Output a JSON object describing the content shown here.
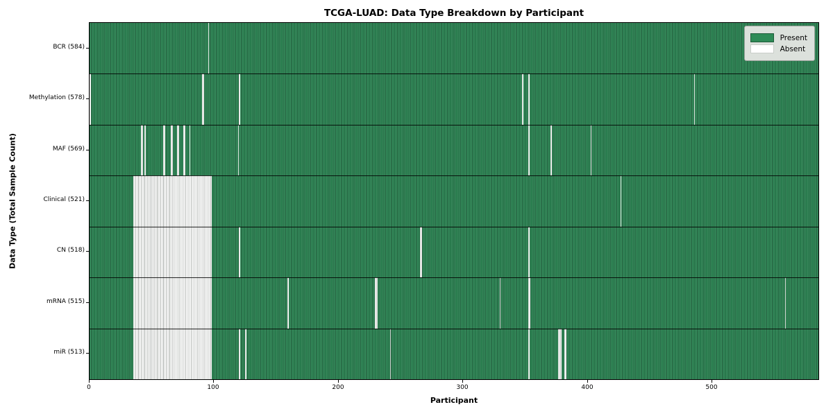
{
  "title": "TCGA-LUAD: Data Type Breakdown by Participant",
  "chart_data": {
    "type": "heatmap",
    "title": "TCGA-LUAD: Data Type Breakdown by Participant",
    "xlabel": "Participant",
    "ylabel": "Data Type (Total Sample Count)",
    "x_range": [
      0,
      585
    ],
    "x_ticks": [
      0,
      100,
      200,
      300,
      400,
      500
    ],
    "grid": false,
    "legend": {
      "position": "upper right",
      "entries": [
        {
          "label": "Present",
          "color": "#2e8b57"
        },
        {
          "label": "Absent",
          "color": "#ffffff"
        }
      ]
    },
    "colors": {
      "present_fill": "#2e8b57",
      "present_edge": "#17492e",
      "absent_fill": "#ffffff",
      "absent_edge": "#a9aeaa",
      "row_divider": "#000000"
    },
    "rows": [
      {
        "label": "BCR (584)",
        "name": "BCR",
        "present_count": 584,
        "absent_ranges": [
          [
            95,
            95
          ]
        ]
      },
      {
        "label": "Methylation (578)",
        "name": "Methylation",
        "present_count": 578,
        "absent_ranges": [
          [
            0,
            0
          ],
          [
            90,
            91
          ],
          [
            120,
            120
          ],
          [
            347,
            347
          ],
          [
            352,
            352
          ],
          [
            485,
            485
          ]
        ]
      },
      {
        "label": "MAF (569)",
        "name": "MAF",
        "present_count": 569,
        "absent_ranges": [
          [
            41,
            42
          ],
          [
            44,
            44
          ],
          [
            59,
            60
          ],
          [
            65,
            66
          ],
          [
            70,
            71
          ],
          [
            75,
            76
          ],
          [
            80,
            80
          ],
          [
            119,
            119
          ],
          [
            352,
            352
          ],
          [
            370,
            370
          ],
          [
            402,
            402
          ]
        ]
      },
      {
        "label": "Clinical (521)",
        "name": "Clinical",
        "present_count": 521,
        "absent_ranges": [
          [
            35,
            97
          ],
          [
            426,
            426
          ]
        ]
      },
      {
        "label": "CN (518)",
        "name": "CN",
        "present_count": 518,
        "absent_ranges": [
          [
            35,
            97
          ],
          [
            120,
            120
          ],
          [
            265,
            266
          ],
          [
            352,
            352
          ]
        ]
      },
      {
        "label": "mRNA (515)",
        "name": "mRNA",
        "present_count": 515,
        "absent_ranges": [
          [
            35,
            97
          ],
          [
            159,
            159
          ],
          [
            229,
            230
          ],
          [
            329,
            329
          ],
          [
            352,
            353
          ],
          [
            558,
            558
          ]
        ]
      },
      {
        "label": "miR (513)",
        "name": "miR",
        "present_count": 513,
        "absent_ranges": [
          [
            35,
            97
          ],
          [
            120,
            120
          ],
          [
            125,
            125
          ],
          [
            241,
            241
          ],
          [
            352,
            352
          ],
          [
            376,
            378
          ],
          [
            381,
            382
          ]
        ]
      }
    ]
  }
}
